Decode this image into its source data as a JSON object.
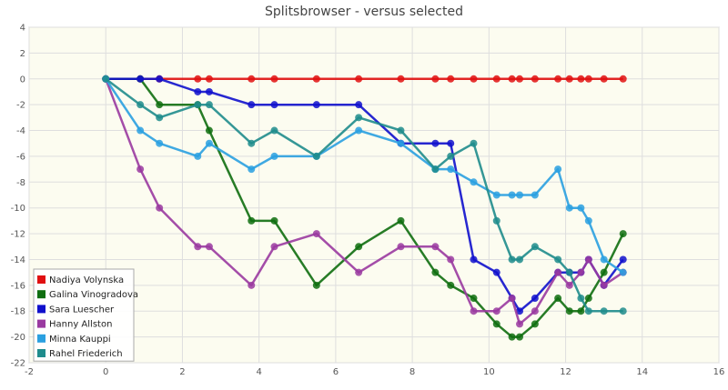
{
  "chart_data": {
    "type": "line",
    "title": "Splitsbrowser - versus selected",
    "xlabel": "",
    "ylabel": "",
    "xlim": [
      -2,
      16
    ],
    "ylim": [
      -22,
      4
    ],
    "xticks": [
      -2,
      0,
      2,
      4,
      6,
      8,
      10,
      12,
      14,
      16
    ],
    "yticks": [
      4,
      2,
      0,
      -2,
      -4,
      -6,
      -8,
      -10,
      -12,
      -14,
      -16,
      -18,
      -20,
      -22
    ],
    "grid": true,
    "legend_position": "bottom-left",
    "background": "#fcfcf0",
    "series": [
      {
        "name": "Nadiya Volynska",
        "color": "#e01010",
        "x": [
          0,
          0.9,
          1.4,
          2.4,
          2.7,
          3.8,
          4.4,
          5.5,
          6.6,
          7.7,
          8.6,
          9.0,
          9.6,
          10.2,
          10.6,
          10.8,
          11.2,
          11.8,
          12.1,
          12.4,
          12.6,
          13.0,
          13.5
        ],
        "y": [
          0,
          0,
          0,
          0,
          0,
          0,
          0,
          0,
          0,
          0,
          0,
          0,
          0,
          0,
          0,
          0,
          0,
          0,
          0,
          0,
          0,
          0,
          0
        ]
      },
      {
        "name": "Galina Vinogradova",
        "color": "#0f6e0f",
        "x": [
          0,
          0.9,
          1.4,
          2.4,
          2.7,
          3.8,
          4.4,
          5.5,
          6.6,
          7.7,
          8.6,
          9.0,
          9.6,
          10.2,
          10.6,
          10.8,
          11.2,
          11.8,
          12.1,
          12.4,
          12.6,
          13.0,
          13.5
        ],
        "y": [
          0,
          0,
          -2,
          -2,
          -4,
          -11,
          -11,
          -16,
          -13,
          -11,
          -15,
          -16,
          -17,
          -19,
          -20,
          -20,
          -19,
          -17,
          -18,
          -18,
          -17,
          -15,
          -12
        ]
      },
      {
        "name": "Sara Luescher",
        "color": "#1010cc",
        "x": [
          0,
          0.9,
          1.4,
          2.4,
          2.7,
          3.8,
          4.4,
          5.5,
          6.6,
          7.7,
          8.6,
          9.0,
          9.6,
          10.2,
          10.6,
          10.8,
          11.2,
          11.8,
          12.1,
          12.4,
          12.6,
          13.0,
          13.5
        ],
        "y": [
          0,
          0,
          0,
          -1,
          -1,
          -2,
          -2,
          -2,
          -2,
          -5,
          -5,
          -5,
          -14,
          -15,
          -17,
          -18,
          -17,
          -15,
          -15,
          -15,
          -14,
          -16,
          -14
        ]
      },
      {
        "name": "Hanny Allston",
        "color": "#9a3aa0",
        "x": [
          0,
          0.9,
          1.4,
          2.4,
          2.7,
          3.8,
          4.4,
          5.5,
          6.6,
          7.7,
          8.6,
          9.0,
          9.6,
          10.2,
          10.6,
          10.8,
          11.2,
          11.8,
          12.1,
          12.4,
          12.6,
          13.0,
          13.5
        ],
        "y": [
          0,
          -7,
          -10,
          -13,
          -13,
          -16,
          -13,
          -12,
          -15,
          -13,
          -13,
          -14,
          -18,
          -18,
          -17,
          -19,
          -18,
          -15,
          -16,
          -15,
          -14,
          -16,
          -15
        ]
      },
      {
        "name": "Minna Kauppi",
        "color": "#2aa0e0",
        "x": [
          0,
          0.9,
          1.4,
          2.4,
          2.7,
          3.8,
          4.4,
          5.5,
          6.6,
          7.7,
          8.6,
          9.0,
          9.6,
          10.2,
          10.6,
          10.8,
          11.2,
          11.8,
          12.1,
          12.4,
          12.6,
          13.0,
          13.5
        ],
        "y": [
          0,
          -4,
          -5,
          -6,
          -5,
          -7,
          -6,
          -6,
          -4,
          -5,
          -7,
          -7,
          -8,
          -9,
          -9,
          -9,
          -9,
          -7,
          -10,
          -10,
          -11,
          -14,
          -15
        ]
      },
      {
        "name": "Rahel Friederich",
        "color": "#1f8c8c",
        "x": [
          0,
          0.9,
          1.4,
          2.4,
          2.7,
          3.8,
          4.4,
          5.5,
          6.6,
          7.7,
          8.6,
          9.0,
          9.6,
          10.2,
          10.6,
          10.8,
          11.2,
          11.8,
          12.1,
          12.4,
          12.6,
          13.0,
          13.5
        ],
        "y": [
          0,
          -2,
          -3,
          -2,
          -2,
          -5,
          -4,
          -6,
          -3,
          -4,
          -7,
          -6,
          -5,
          -11,
          -14,
          -14,
          -13,
          -14,
          -15,
          -17,
          -18,
          -18,
          -18
        ]
      }
    ]
  }
}
